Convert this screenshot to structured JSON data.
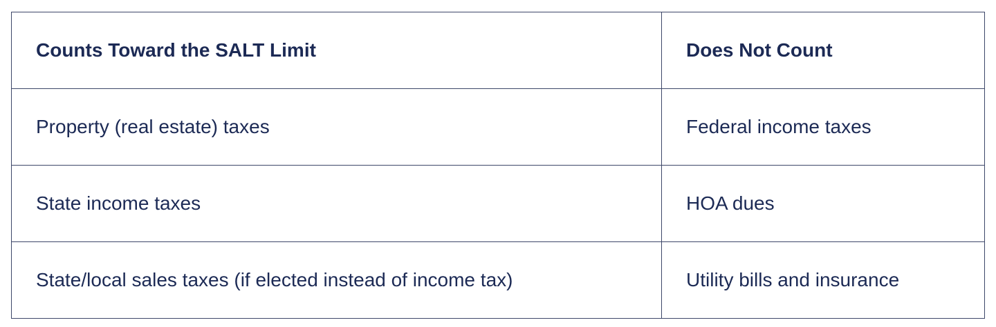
{
  "table": {
    "headers": [
      "Counts Toward the SALT Limit",
      "Does Not Count"
    ],
    "rows": [
      [
        "Property (real estate) taxes",
        "Federal income taxes"
      ],
      [
        "State income taxes",
        "HOA dues"
      ],
      [
        "State/local sales taxes (if elected instead of income tax)",
        "Utility bills and insurance"
      ]
    ]
  },
  "colors": {
    "text": "#1c2a55",
    "border": "#3c4668"
  }
}
